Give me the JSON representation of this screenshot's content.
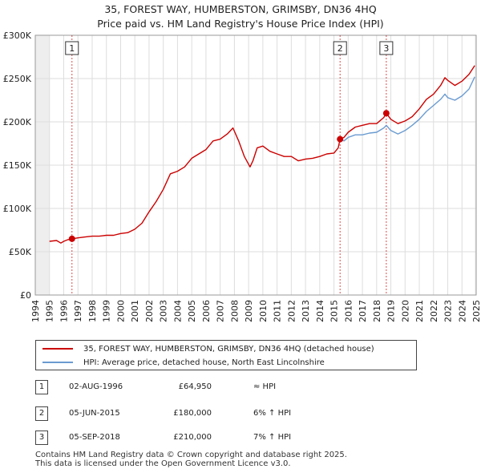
{
  "colors": {
    "price": "#cc0000",
    "hpi": "#6a9bd1",
    "marker_box": "#cc0000",
    "grid": "#dddddd",
    "shade": "#eeeeee"
  },
  "chart_data": {
    "type": "line",
    "title": "35, FOREST WAY, HUMBERSTON, GRIMSBY, DN36 4HQ",
    "subtitle": "Price paid vs. HM Land Registry's House Price Index (HPI)",
    "xlabel": "",
    "ylabel": "",
    "xlim": [
      1994,
      2025
    ],
    "ylim": [
      0,
      300000
    ],
    "y_ticks": [
      0,
      50000,
      100000,
      150000,
      200000,
      250000,
      300000
    ],
    "y_tick_labels": [
      "£0",
      "£50K",
      "£100K",
      "£150K",
      "£200K",
      "£250K",
      "£300K"
    ],
    "x_tick_labels": [
      "1994",
      "1995",
      "1996",
      "1997",
      "1998",
      "1999",
      "2000",
      "2001",
      "2002",
      "2003",
      "2004",
      "2005",
      "2006",
      "2007",
      "2008",
      "2009",
      "2010",
      "2011",
      "2012",
      "2013",
      "2014",
      "2015",
      "2016",
      "2017",
      "2018",
      "2019",
      "2020",
      "2021",
      "2022",
      "2023",
      "2024",
      "2025"
    ],
    "grid": true,
    "series": [
      {
        "name": "35, FOREST WAY, HUMBERSTON, GRIMSBY, DN36 4HQ (detached house)",
        "x": [
          1995.0,
          1995.5,
          1995.8,
          1996.0,
          1996.3,
          1996.58,
          1997.0,
          1997.5,
          1998.0,
          1998.5,
          1999.0,
          1999.5,
          2000.0,
          2000.5,
          2001.0,
          2001.5,
          2002.0,
          2002.5,
          2003.0,
          2003.5,
          2004.0,
          2004.5,
          2005.0,
          2005.5,
          2006.0,
          2006.5,
          2007.0,
          2007.5,
          2007.9,
          2008.3,
          2008.7,
          2009.1,
          2009.3,
          2009.6,
          2010.0,
          2010.5,
          2011.0,
          2011.5,
          2012.0,
          2012.5,
          2013.0,
          2013.5,
          2014.0,
          2014.5,
          2015.0,
          2015.3,
          2015.43,
          2015.7,
          2016.0,
          2016.5,
          2017.0,
          2017.5,
          2018.0,
          2018.5,
          2018.68,
          2019.0,
          2019.5,
          2020.0,
          2020.5,
          2021.0,
          2021.5,
          2022.0,
          2022.5,
          2022.8,
          2023.0,
          2023.5,
          2024.0,
          2024.5,
          2024.9
        ],
        "values": [
          62000,
          63000,
          60000,
          62000,
          64000,
          64950,
          66000,
          67000,
          68000,
          68000,
          69000,
          69000,
          71000,
          72000,
          76000,
          83000,
          96000,
          108000,
          122000,
          140000,
          143000,
          148000,
          158000,
          163000,
          168000,
          178000,
          180000,
          186000,
          193000,
          178000,
          160000,
          148000,
          155000,
          170000,
          172000,
          166000,
          163000,
          160000,
          160000,
          155000,
          157000,
          158000,
          160000,
          163000,
          164000,
          170000,
          180000,
          182000,
          188000,
          194000,
          196000,
          198000,
          198000,
          205000,
          210000,
          203000,
          198000,
          201000,
          206000,
          215000,
          226000,
          232000,
          242000,
          251000,
          248000,
          242000,
          247000,
          255000,
          265000
        ]
      },
      {
        "name": "HPI: Average price, detached house, North East Lincolnshire",
        "x": [
          2015.43,
          2015.7,
          2016.0,
          2016.5,
          2017.0,
          2017.5,
          2018.0,
          2018.5,
          2018.68,
          2019.0,
          2019.5,
          2020.0,
          2020.5,
          2021.0,
          2021.5,
          2022.0,
          2022.5,
          2022.8,
          2023.0,
          2023.5,
          2024.0,
          2024.5,
          2024.9
        ],
        "values": [
          180000,
          178000,
          182000,
          185000,
          185000,
          187000,
          188000,
          193000,
          196000,
          190000,
          186000,
          190000,
          196000,
          203000,
          212000,
          219000,
          226000,
          232000,
          228000,
          225000,
          230000,
          238000,
          252000
        ]
      }
    ],
    "transactions": [
      {
        "label": "1",
        "date": "02-AUG-1996",
        "price": "£64,950",
        "hpi": "≈ HPI",
        "year": 1996.58,
        "value": 64950
      },
      {
        "label": "2",
        "date": "05-JUN-2015",
        "price": "£180,000",
        "hpi": "6% ↑ HPI",
        "year": 2015.43,
        "value": 180000
      },
      {
        "label": "3",
        "date": "05-SEP-2018",
        "price": "£210,000",
        "hpi": "7% ↑ HPI",
        "year": 2018.68,
        "value": 210000
      }
    ]
  },
  "legend": {
    "price_label": "35, FOREST WAY, HUMBERSTON, GRIMSBY, DN36 4HQ (detached house)",
    "hpi_label": "HPI: Average price, detached house, North East Lincolnshire"
  },
  "footer": {
    "line1": "Contains HM Land Registry data © Crown copyright and database right 2025.",
    "line2": "This data is licensed under the Open Government Licence v3.0."
  }
}
